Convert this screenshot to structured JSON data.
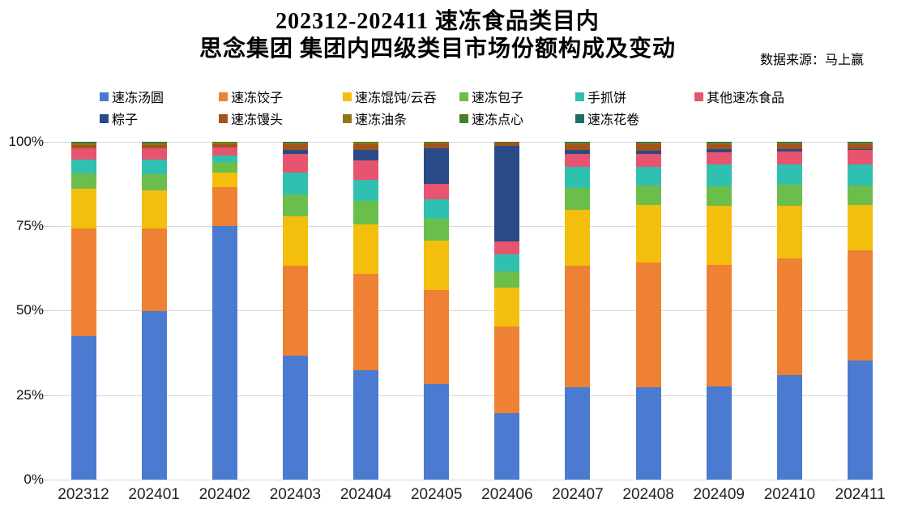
{
  "title": {
    "line1": "202312-202411 速冻食品类目内",
    "line2": "思念集团 集团内四级类目市场份额构成及变动"
  },
  "source": "数据来源：马上赢",
  "axis": {
    "y_ticks": [
      "100%",
      "75%",
      "50%",
      "25%",
      "0%"
    ]
  },
  "chart_data": {
    "type": "bar",
    "stacked": true,
    "percent": true,
    "title": "202312-202411 速冻食品类目内 思念集团 集团内四级类目市场份额构成及变动",
    "xlabel": "",
    "ylabel": "",
    "ylim": [
      0,
      100
    ],
    "grid": true,
    "legend_position": "top",
    "categories": [
      "202312",
      "202401",
      "202402",
      "202403",
      "202404",
      "202405",
      "202406",
      "202407",
      "202408",
      "202409",
      "202410",
      "202411"
    ],
    "series": [
      {
        "name": "速冻汤圆",
        "color": "#4b7bd0",
        "values": [
          42.5,
          49.8,
          75.0,
          36.6,
          32.3,
          28.2,
          19.5,
          27.2,
          27.3,
          27.5,
          30.9,
          35.3
        ]
      },
      {
        "name": "速冻饺子",
        "color": "#ee8133",
        "values": [
          31.8,
          24.6,
          11.5,
          26.8,
          28.7,
          28.0,
          25.8,
          36.0,
          36.9,
          36.0,
          34.6,
          32.6
        ]
      },
      {
        "name": "速冻馄饨/云吞",
        "color": "#f4be0d",
        "values": [
          11.8,
          11.3,
          4.4,
          14.5,
          14.5,
          14.5,
          11.6,
          16.6,
          17.2,
          17.5,
          15.5,
          13.4
        ]
      },
      {
        "name": "速冻包子",
        "color": "#6cbe4c",
        "values": [
          4.5,
          4.7,
          3.2,
          6.5,
          7.1,
          6.5,
          4.8,
          6.5,
          5.6,
          5.8,
          6.2,
          5.8
        ]
      },
      {
        "name": "手抓饼",
        "color": "#30c0b0",
        "values": [
          4.2,
          4.3,
          1.8,
          6.4,
          6.2,
          5.8,
          5.0,
          6.2,
          5.6,
          6.4,
          6.0,
          6.2
        ]
      },
      {
        "name": "其他速冻食品",
        "color": "#e75470",
        "values": [
          3.2,
          3.3,
          2.4,
          5.6,
          5.6,
          4.6,
          3.7,
          4.0,
          3.8,
          3.8,
          4.0,
          4.4
        ]
      },
      {
        "name": "粽子",
        "color": "#2a4a87",
        "values": [
          0.1,
          0.1,
          0.1,
          1.2,
          3.2,
          10.4,
          28.5,
          1.0,
          1.0,
          0.8,
          0.6,
          0.2
        ]
      },
      {
        "name": "速冻馒头",
        "color": "#a4541a",
        "values": [
          1.0,
          1.0,
          1.0,
          1.6,
          1.8,
          1.5,
          0.8,
          1.8,
          1.9,
          1.6,
          1.6,
          1.5
        ]
      },
      {
        "name": "速冻油条",
        "color": "#8e7912",
        "values": [
          0.4,
          0.4,
          0.3,
          0.4,
          0.3,
          0.2,
          0.1,
          0.3,
          0.3,
          0.2,
          0.2,
          0.2
        ]
      },
      {
        "name": "速冻点心",
        "color": "#477f2a",
        "values": [
          0.3,
          0.3,
          0.2,
          0.2,
          0.2,
          0.2,
          0.1,
          0.2,
          0.2,
          0.2,
          0.2,
          0.2
        ]
      },
      {
        "name": "速冻花卷",
        "color": "#206d66",
        "values": [
          0.2,
          0.2,
          0.1,
          0.2,
          0.1,
          0.1,
          0.1,
          0.2,
          0.2,
          0.2,
          0.2,
          0.2
        ]
      }
    ]
  }
}
